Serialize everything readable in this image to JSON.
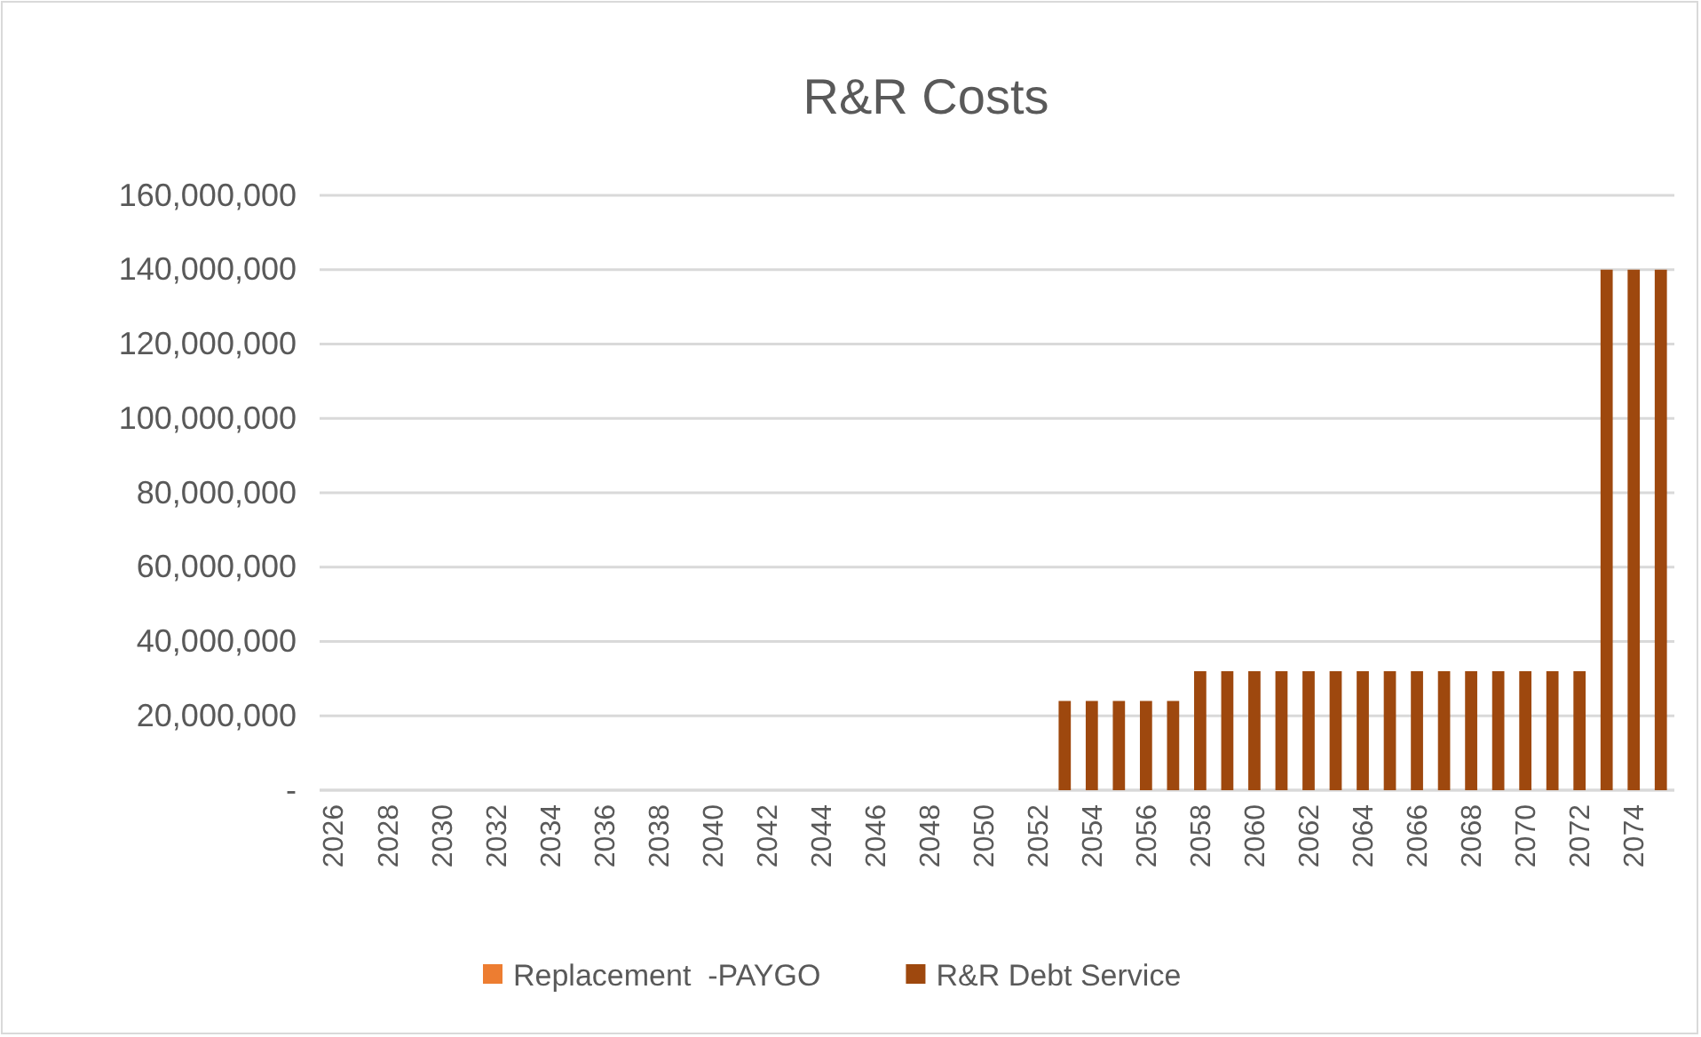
{
  "chart_data": {
    "type": "bar",
    "title": "R&R Costs",
    "stacked": true,
    "grid": "y",
    "legend": "bottom",
    "categories": [
      "2026",
      null,
      "2028",
      null,
      "2030",
      null,
      "2032",
      null,
      "2034",
      null,
      "2036",
      null,
      "2038",
      null,
      "2040",
      null,
      "2042",
      null,
      "2044",
      null,
      "2046",
      null,
      "2048",
      null,
      "2050",
      null,
      "2052",
      null,
      "2054",
      null,
      "2056",
      null,
      "2058",
      null,
      "2060",
      null,
      "2062",
      null,
      "2064",
      null,
      "2066",
      null,
      "2068",
      null,
      "2070",
      null,
      "2072",
      null,
      "2074",
      null
    ],
    "series": [
      {
        "name": "Replacement  -PAYGO",
        "color": "#ed7d31",
        "values": [
          0,
          0,
          0,
          0,
          0,
          0,
          0,
          0,
          0,
          0,
          0,
          0,
          0,
          0,
          0,
          0,
          0,
          0,
          0,
          0,
          0,
          0,
          0,
          0,
          0,
          0,
          0,
          0,
          0,
          0,
          0,
          0,
          0,
          0,
          0,
          0,
          0,
          0,
          0,
          0,
          0,
          0,
          0,
          0,
          0,
          0,
          0,
          0,
          0,
          0
        ]
      },
      {
        "name": "R&R Debt Service",
        "color": "#9e480e",
        "values": [
          0,
          0,
          0,
          0,
          0,
          0,
          0,
          0,
          0,
          0,
          0,
          0,
          0,
          0,
          0,
          0,
          0,
          0,
          0,
          0,
          0,
          0,
          0,
          0,
          0,
          0,
          0,
          24000000,
          24000000,
          24000000,
          24000000,
          24000000,
          32000000,
          32000000,
          32000000,
          32000000,
          32000000,
          32000000,
          32000000,
          32000000,
          32000000,
          32000000,
          32000000,
          32000000,
          32000000,
          32000000,
          32000000,
          140000000,
          140000000,
          140000000
        ]
      }
    ],
    "ylim": [
      0,
      160000000
    ],
    "yticks": [
      {
        "value": 0,
        "label": "-"
      },
      {
        "value": 20000000,
        "label": "20,000,000"
      },
      {
        "value": 40000000,
        "label": "40,000,000"
      },
      {
        "value": 60000000,
        "label": "60,000,000"
      },
      {
        "value": 80000000,
        "label": "80,000,000"
      },
      {
        "value": 100000000,
        "label": "100,000,000"
      },
      {
        "value": 120000000,
        "label": "120,000,000"
      },
      {
        "value": 140000000,
        "label": "140,000,000"
      },
      {
        "value": 160000000,
        "label": "160,000,000"
      }
    ]
  }
}
